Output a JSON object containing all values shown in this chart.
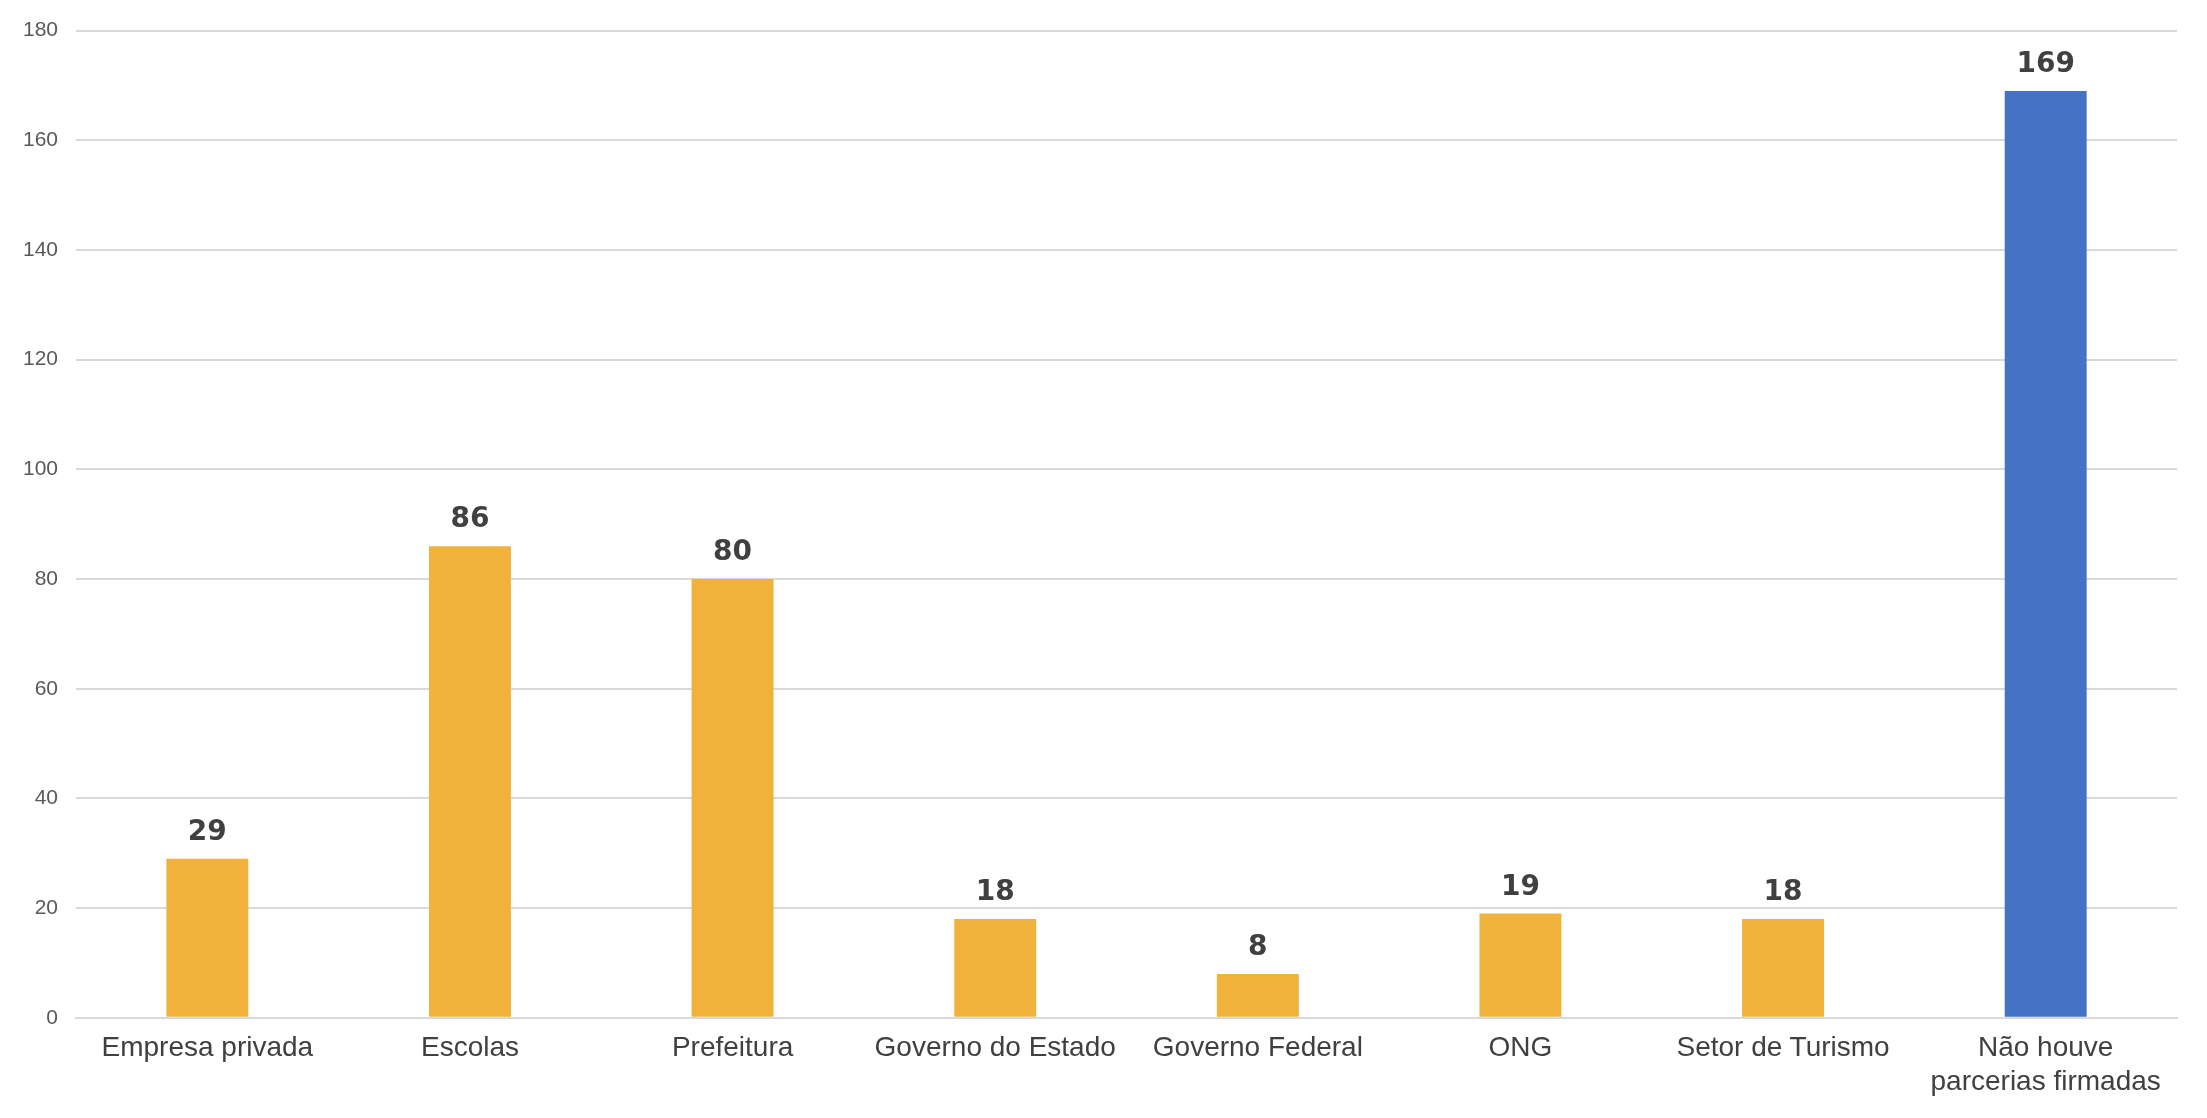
{
  "chart_data": {
    "type": "bar",
    "categories": [
      "Empresa privada",
      "Escolas",
      "Prefeitura",
      "Governo do Estado",
      "Governo Federal",
      "ONG",
      "Setor de Turismo",
      "Não houve parcerias firmadas"
    ],
    "values": [
      29,
      86,
      80,
      18,
      8,
      19,
      18,
      169
    ],
    "colors": [
      "#f0b23b",
      "#f0b23b",
      "#f0b23b",
      "#f0b23b",
      "#f0b23b",
      "#f0b23b",
      "#f0b23b",
      "#4472c4"
    ],
    "ylim": [
      0,
      180
    ],
    "yticks": [
      0,
      20,
      40,
      60,
      80,
      100,
      120,
      140,
      160,
      180
    ],
    "grid": "y",
    "data_labels": true
  }
}
